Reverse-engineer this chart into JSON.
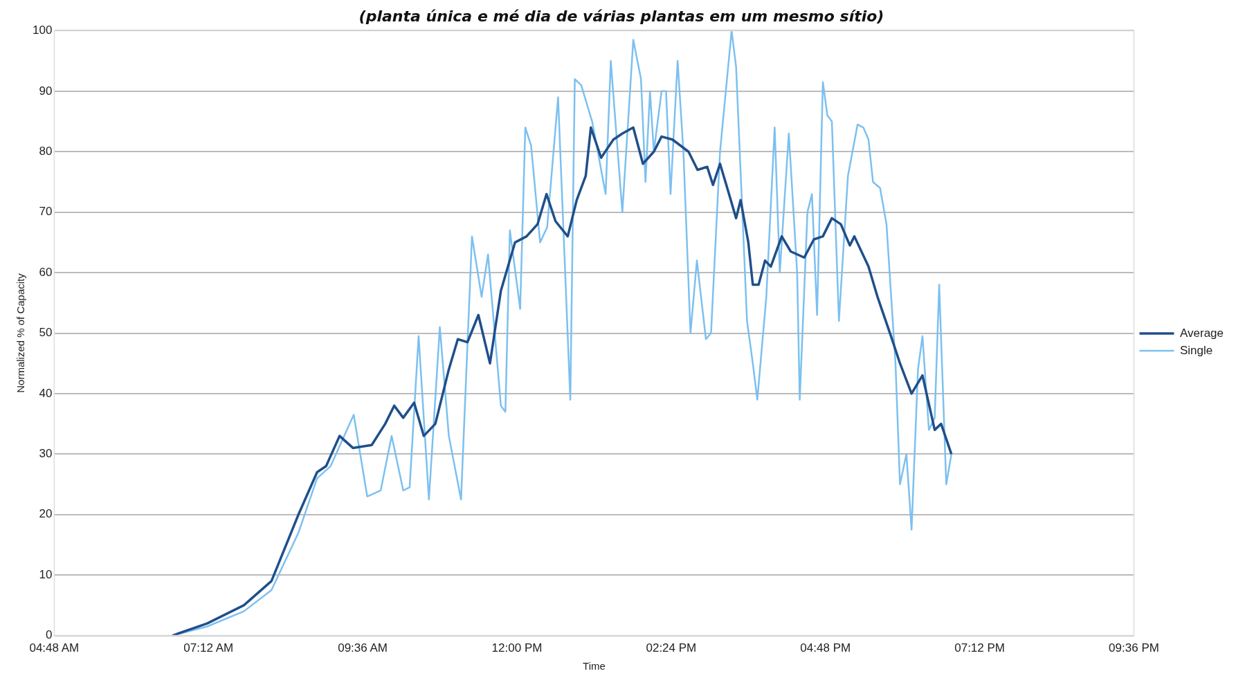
{
  "chart_data": {
    "type": "line",
    "title": "(planta única e mé dia de várias plantas em um mesmo sítio)",
    "xlabel": "Time",
    "ylabel": "Normalized % of Capacity",
    "xlim": [
      4.8,
      21.6
    ],
    "xticks": [
      {
        "value": 4.8,
        "label": "04:48 AM"
      },
      {
        "value": 7.2,
        "label": "07:12 AM"
      },
      {
        "value": 9.6,
        "label": "09:36 AM"
      },
      {
        "value": 12,
        "label": "12:00 PM"
      },
      {
        "value": 14.4,
        "label": "02:24 PM"
      },
      {
        "value": 16.8,
        "label": "04:48 PM"
      },
      {
        "value": 19.2,
        "label": "07:12 PM"
      },
      {
        "value": 21.6,
        "label": "09:36 PM"
      }
    ],
    "ylim": [
      0,
      100
    ],
    "yticks": [
      0,
      10,
      20,
      30,
      40,
      50,
      60,
      70,
      80,
      90,
      100
    ],
    "grid": "y",
    "legend": "right",
    "marker": "none",
    "line_style": "solid",
    "series": [
      {
        "name": "Average",
        "color": "#1f4f8a",
        "x": [
          6.64,
          7.18,
          7.75,
          8.18,
          8.6,
          8.89,
          9.03,
          9.24,
          9.45,
          9.74,
          9.95,
          10.09,
          10.23,
          10.4,
          10.55,
          10.73,
          10.94,
          11.08,
          11.23,
          11.4,
          11.58,
          11.75,
          11.86,
          11.97,
          12.15,
          12.32,
          12.46,
          12.6,
          12.79,
          12.93,
          13.07,
          13.15,
          13.31,
          13.5,
          13.64,
          13.81,
          13.96,
          14.13,
          14.25,
          14.42,
          14.67,
          14.81,
          14.96,
          15.05,
          15.16,
          15.3,
          15.41,
          15.48,
          15.6,
          15.67,
          15.76,
          15.86,
          15.95,
          16.12,
          16.26,
          16.47,
          16.62,
          16.76,
          16.9,
          17.04,
          17.18,
          17.25,
          17.47,
          17.61,
          17.82,
          17.96,
          18.14,
          18.31,
          18.5,
          18.6,
          18.76
        ],
        "values": [
          0,
          2,
          5,
          9,
          20,
          27,
          28,
          33,
          31,
          31.5,
          35,
          38,
          36,
          38.5,
          33,
          35,
          44,
          49,
          48.5,
          53,
          45,
          57,
          61,
          65,
          66,
          68,
          73,
          68.5,
          66,
          72,
          76,
          84,
          79,
          82,
          83,
          84,
          78,
          80,
          82.5,
          82,
          80,
          77,
          77.5,
          74.5,
          78,
          73,
          69,
          72,
          65,
          58,
          58,
          62,
          61,
          66,
          63.5,
          62.5,
          65.5,
          66,
          69,
          68,
          64.5,
          66,
          61,
          56,
          49.5,
          45,
          40,
          43,
          34,
          35,
          30
        ]
      },
      {
        "name": "Single",
        "color": "#7cc0f0",
        "x": [
          6.64,
          7.18,
          7.75,
          8.18,
          8.6,
          8.89,
          9.1,
          9.46,
          9.67,
          9.88,
          10.05,
          10.23,
          10.33,
          10.47,
          10.63,
          10.8,
          10.94,
          11.13,
          11.3,
          11.45,
          11.55,
          11.75,
          11.82,
          11.89,
          12.05,
          12.13,
          12.22,
          12.36,
          12.47,
          12.64,
          12.83,
          12.9,
          13.0,
          13.17,
          13.38,
          13.46,
          13.64,
          13.81,
          13.93,
          14.0,
          14.07,
          14.13,
          14.25,
          14.32,
          14.39,
          14.5,
          14.59,
          14.7,
          14.8,
          14.94,
          15.02,
          15.16,
          15.34,
          15.41,
          15.58,
          15.67,
          15.74,
          15.88,
          16.01,
          16.09,
          16.23,
          16.36,
          16.4,
          16.52,
          16.59,
          16.67,
          16.76,
          16.83,
          16.9,
          17.01,
          17.15,
          17.3,
          17.39,
          17.47,
          17.54,
          17.65,
          17.75,
          17.89,
          17.96,
          18.06,
          18.14,
          18.24,
          18.31,
          18.41,
          18.5,
          18.57,
          18.68,
          18.76
        ],
        "values": [
          0,
          1.5,
          4,
          7.5,
          17,
          26,
          28,
          36.5,
          23,
          24,
          33,
          24,
          24.5,
          49.5,
          22.5,
          51,
          33,
          22.5,
          66,
          56,
          63,
          38,
          37,
          67,
          54,
          84,
          81,
          65,
          67.5,
          89,
          39,
          92,
          91,
          85,
          73,
          95,
          70,
          98.5,
          92,
          75,
          90,
          80,
          90,
          90,
          73,
          95,
          80,
          50,
          62,
          49,
          50,
          80,
          100,
          94,
          52,
          45,
          39,
          56,
          84,
          60,
          83,
          60,
          39,
          70,
          73,
          53,
          91.5,
          86,
          85,
          52,
          76,
          84.5,
          84,
          82,
          75,
          74,
          68,
          45,
          25,
          30,
          17.5,
          44,
          49.5,
          34,
          36,
          58,
          25,
          30
        ]
      }
    ]
  }
}
